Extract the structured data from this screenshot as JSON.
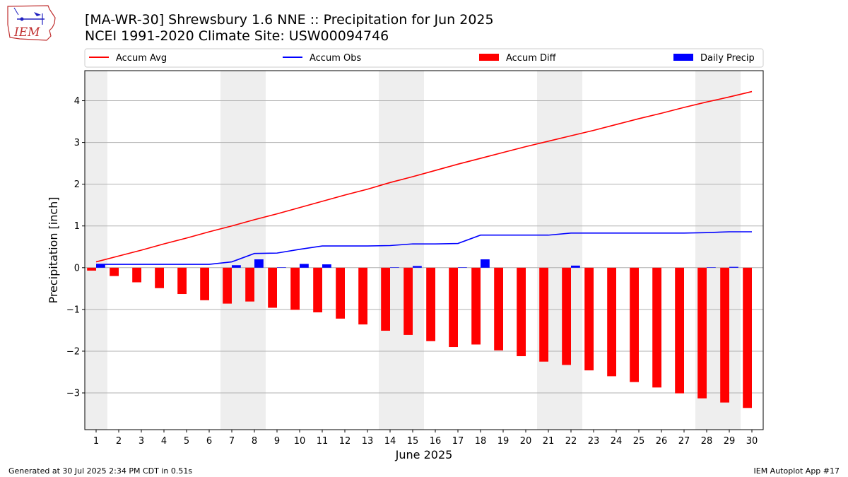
{
  "header": {
    "title_line1": "[MA-WR-30] Shrewsbury 1.6 NNE :: Precipitation for Jun 2025",
    "title_line2": "NCEI 1991-2020 Climate Site: USW00094746",
    "logo_text": "IEM",
    "logo_icon": "iowa-state-outline-icon"
  },
  "footer": {
    "generated": "Generated at 30 Jul 2025 2:34 PM CDT in 0.51s",
    "app": "IEM Autoplot App #17"
  },
  "colors": {
    "accum_avg": "#ff0000",
    "accum_obs": "#0000ff",
    "accum_diff": "#ff0000",
    "daily_precip": "#0000ff",
    "weekend_shade": "#eeeeee",
    "grid": "#b0b0b0"
  },
  "chart_data": {
    "type": "bar",
    "xlabel": "June 2025",
    "ylabel": "Precipitation [inch]",
    "xlim": [
      0.5,
      30.5
    ],
    "ylim": [
      -3.88,
      4.72
    ],
    "yticks": [
      -3,
      -2,
      -1,
      0,
      1,
      2,
      3,
      4
    ],
    "ytick_labels": [
      "−3",
      "−2",
      "−1",
      "0",
      "1",
      "2",
      "3",
      "4"
    ],
    "x": [
      1,
      2,
      3,
      4,
      5,
      6,
      7,
      8,
      9,
      10,
      11,
      12,
      13,
      14,
      15,
      16,
      17,
      18,
      19,
      20,
      21,
      22,
      23,
      24,
      25,
      26,
      27,
      28,
      29,
      30
    ],
    "xtick_labels": [
      "1",
      "2",
      "3",
      "4",
      "5",
      "6",
      "7",
      "8",
      "9",
      "10",
      "11",
      "12",
      "13",
      "14",
      "15",
      "16",
      "17",
      "18",
      "19",
      "20",
      "21",
      "22",
      "23",
      "24",
      "25",
      "26",
      "27",
      "28",
      "29",
      "30"
    ],
    "grid": "horizontal",
    "legend_position": "top",
    "weekend_spans": [
      [
        0.5,
        1.5
      ],
      [
        6.5,
        8.5
      ],
      [
        13.5,
        15.5
      ],
      [
        20.5,
        22.5
      ],
      [
        27.5,
        29.5
      ]
    ],
    "series": [
      {
        "name": "Accum Avg",
        "kind": "line",
        "values": [
          0.14,
          0.28,
          0.42,
          0.57,
          0.71,
          0.86,
          1.0,
          1.15,
          1.29,
          1.44,
          1.59,
          1.74,
          1.88,
          2.04,
          2.18,
          2.33,
          2.48,
          2.62,
          2.76,
          2.9,
          3.03,
          3.16,
          3.29,
          3.43,
          3.57,
          3.7,
          3.84,
          3.97,
          4.09,
          4.22
        ]
      },
      {
        "name": "Accum Obs",
        "kind": "line",
        "values": [
          0.08,
          0.08,
          0.08,
          0.08,
          0.08,
          0.08,
          0.14,
          0.34,
          0.35,
          0.44,
          0.52,
          0.52,
          0.52,
          0.53,
          0.57,
          0.57,
          0.58,
          0.78,
          0.78,
          0.78,
          0.78,
          0.83,
          0.83,
          0.83,
          0.83,
          0.83,
          0.83,
          0.84,
          0.86,
          0.86
        ]
      },
      {
        "name": "Accum Diff",
        "kind": "bar",
        "values": [
          -0.07,
          -0.2,
          -0.35,
          -0.49,
          -0.63,
          -0.78,
          -0.86,
          -0.81,
          -0.96,
          -1.01,
          -1.07,
          -1.22,
          -1.36,
          -1.51,
          -1.61,
          -1.76,
          -1.9,
          -1.84,
          -1.98,
          -2.12,
          -2.25,
          -2.33,
          -2.46,
          -2.6,
          -2.74,
          -2.87,
          -3.01,
          -3.13,
          -3.23,
          -3.36
        ]
      },
      {
        "name": "Daily Precip",
        "kind": "bar",
        "values": [
          0.08,
          0.0,
          0.0,
          0.0,
          0.0,
          0.0,
          0.06,
          0.2,
          0.01,
          0.09,
          0.08,
          0.0,
          0.0,
          0.01,
          0.04,
          0.0,
          0.01,
          0.2,
          0.0,
          0.0,
          0.0,
          0.05,
          0.0,
          0.0,
          0.0,
          0.0,
          0.0,
          0.01,
          0.02,
          0.0
        ]
      }
    ]
  }
}
